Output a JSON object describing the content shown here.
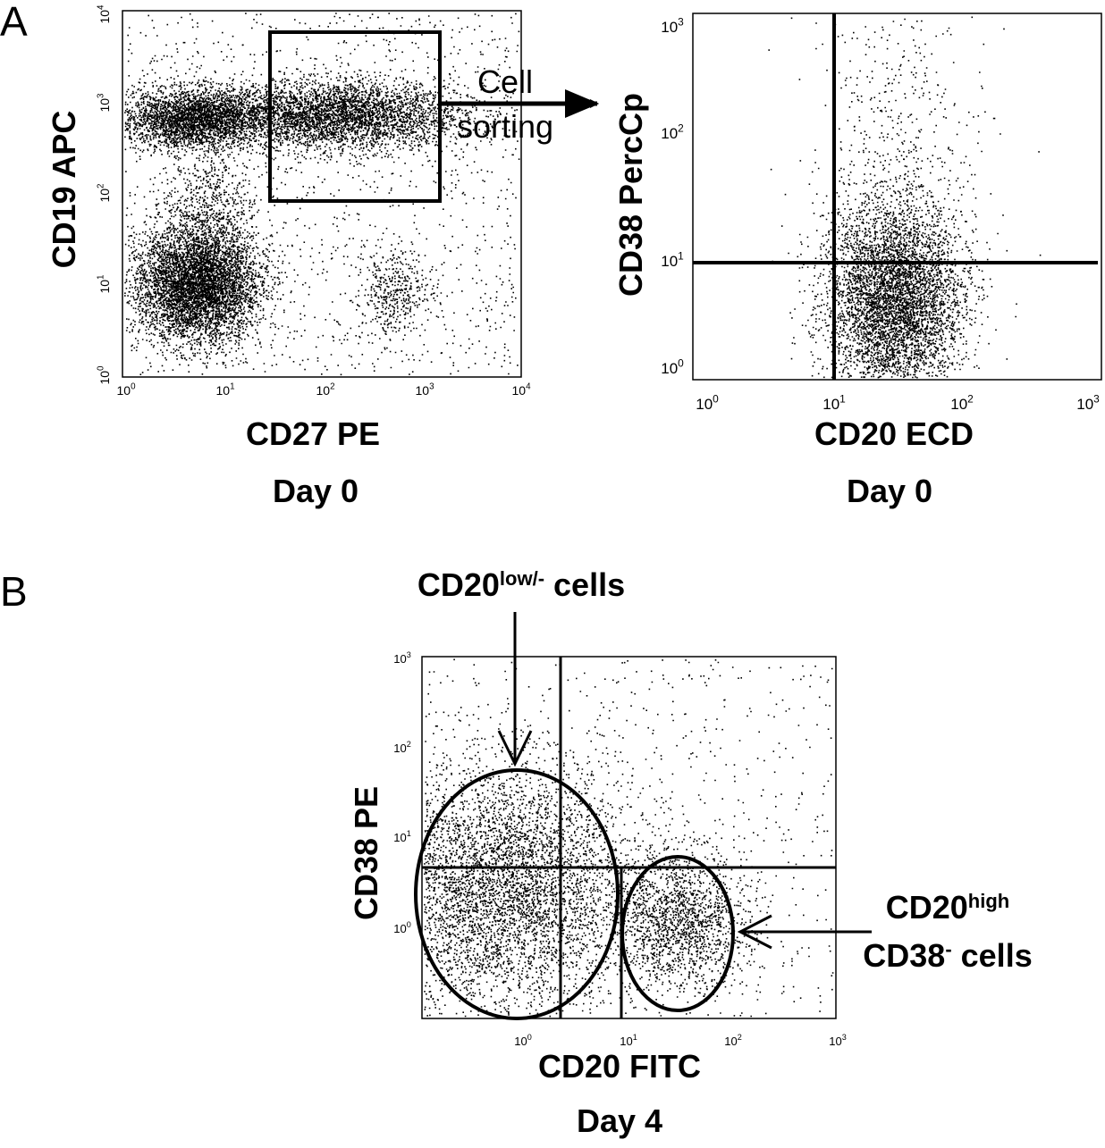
{
  "panel_a": {
    "label": "A",
    "plot_1": {
      "y_label": "CD19 APC",
      "x_label": "CD27 PE",
      "caption": "Day 0",
      "x_ticks": [
        {
          "base": "10",
          "exp": "0"
        },
        {
          "base": "10",
          "exp": "1"
        },
        {
          "base": "10",
          "exp": "2"
        },
        {
          "base": "10",
          "exp": "3"
        },
        {
          "base": "10",
          "exp": "4"
        }
      ],
      "y_ticks": [
        {
          "base": "10",
          "exp": "0"
        },
        {
          "base": "10",
          "exp": "1"
        },
        {
          "base": "10",
          "exp": "2"
        },
        {
          "base": "10",
          "exp": "3"
        },
        {
          "base": "10",
          "exp": "4"
        }
      ]
    },
    "arrow_label": [
      "Cell",
      "sorting"
    ],
    "plot_2": {
      "y_label": "CD38 PercCp",
      "x_label": "CD20 ECD",
      "caption": "Day 0",
      "x_ticks": [
        {
          "base": "10",
          "exp": "0"
        },
        {
          "base": "10",
          "exp": "1"
        },
        {
          "base": "10",
          "exp": "2"
        },
        {
          "base": "10",
          "exp": "3"
        }
      ],
      "y_ticks": [
        {
          "base": "10",
          "exp": "0"
        },
        {
          "base": "10",
          "exp": "1"
        },
        {
          "base": "10",
          "exp": "2"
        },
        {
          "base": "10",
          "exp": "3"
        }
      ]
    }
  },
  "panel_b": {
    "label": "B",
    "plot": {
      "y_label": "CD38 PE",
      "x_label": "CD20 FITC",
      "caption": "Day 4",
      "x_ticks": [
        {
          "base": "10",
          "exp": "0"
        },
        {
          "base": "10",
          "exp": "1"
        },
        {
          "base": "10",
          "exp": "2"
        },
        {
          "base": "10",
          "exp": "3"
        }
      ],
      "y_ticks": [
        {
          "base": "10",
          "exp": "0"
        },
        {
          "base": "10",
          "exp": "1"
        },
        {
          "base": "10",
          "exp": "2"
        },
        {
          "base": "10",
          "exp": "3"
        }
      ]
    },
    "annotation_low": {
      "main": "CD20",
      "sup": "low/-",
      "rest": " cells"
    },
    "annotation_high": {
      "line1_main": "CD20",
      "line1_sup": "high",
      "line2_main": "CD38",
      "line2_sup": "-",
      "line2_rest": " cells"
    }
  }
}
